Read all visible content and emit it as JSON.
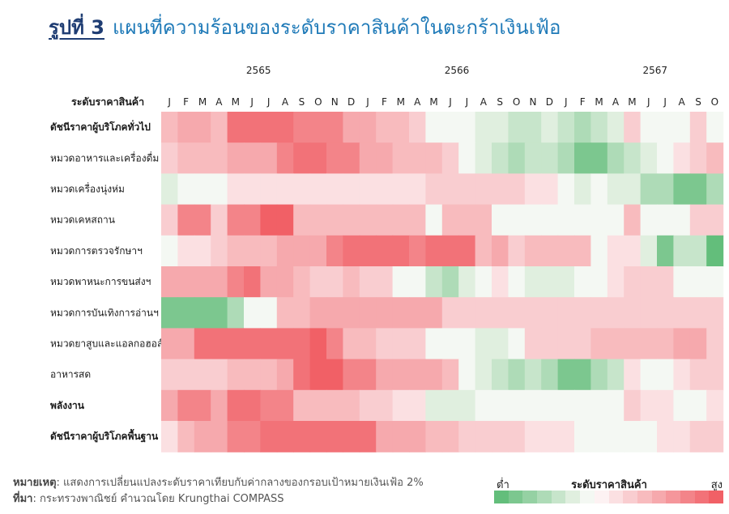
{
  "figure": {
    "label": "รูปที่ 3",
    "title": "แผนที่ความร้อนของระดับราคาสินค้าในตะกร้าเงินเฟ้อ"
  },
  "notes": {
    "note_label": "หมายเหตุ",
    "note_text": ": แสดงการเปลี่ยนแปลงระดับราคาเทียบกับค่ากลางของกรอบเป้าหมายเงินเฟ้อ 2%",
    "source_label": "ที่มา",
    "source_text": ": กระทรวงพาณิชย์ คำนวณโดย Krungthai COMPASS"
  },
  "legend": {
    "title": "ระดับราคาสินค้า",
    "low": "ต่ำ",
    "high": "สูง",
    "colors": [
      "#63be7b",
      "#7cc78f",
      "#95d1a3",
      "#aedbb7",
      "#c7e5cb",
      "#e0efdf",
      "#f4f8f3",
      "#fdf2f3",
      "#fbe0e2",
      "#f9cdd0",
      "#f8bbbe",
      "#f6a9ad",
      "#f5969b",
      "#f38489",
      "#f27278",
      "#f16066"
    ]
  },
  "chart_data": {
    "type": "heatmap",
    "title": "แผนที่ความร้อนของระดับราคาสินค้าในตะกร้าเงินเฟ้อ",
    "row_header": "ระดับราคาสินค้า",
    "years": [
      {
        "label": "2565",
        "start_index": 0
      },
      {
        "label": "2566",
        "start_index": 12
      },
      {
        "label": "2567",
        "start_index": 24
      }
    ],
    "columns": [
      "J",
      "F",
      "M",
      "A",
      "M",
      "J",
      "J",
      "A",
      "S",
      "O",
      "N",
      "D",
      "J",
      "F",
      "M",
      "A",
      "M",
      "J",
      "J",
      "A",
      "S",
      "O",
      "N",
      "D",
      "J",
      "F",
      "M",
      "A",
      "M",
      "J",
      "J",
      "A",
      "S",
      "O"
    ],
    "scale": {
      "min": -6,
      "max": 6,
      "low_label": "ต่ำ",
      "high_label": "สูง"
    },
    "rows": [
      {
        "label": "ดัชนีราคาผู้บริโภคทั่วไป",
        "bold": true,
        "values": [
          2,
          3,
          3,
          2,
          5,
          5,
          5,
          5,
          4,
          4,
          4,
          3,
          3,
          2,
          2,
          1,
          -1,
          -1,
          -1,
          -2,
          -2,
          -3,
          -3,
          -2,
          -3,
          -4,
          -3,
          -2,
          1,
          -1,
          -1,
          -1,
          1,
          -1
        ]
      },
      {
        "label": "หมวดอาหารและเครื่องดื่ม",
        "bold": false,
        "values": [
          1,
          2,
          2,
          2,
          3,
          3,
          3,
          4,
          5,
          5,
          4,
          4,
          3,
          3,
          2,
          2,
          2,
          1,
          -1,
          -2,
          -3,
          -4,
          -3,
          -3,
          -4,
          -5,
          -5,
          -4,
          -3,
          -2,
          -1,
          0,
          1,
          2
        ]
      },
      {
        "label": "หมวดเครื่องนุ่งห่ม",
        "bold": false,
        "values": [
          -2,
          -1,
          -1,
          -1,
          0,
          0,
          0,
          0,
          0,
          0,
          0,
          0,
          0,
          0,
          0,
          0,
          1,
          1,
          1,
          1,
          1,
          1,
          0,
          0,
          -1,
          -2,
          -1,
          -2,
          -2,
          -4,
          -4,
          -5,
          -5,
          -4
        ]
      },
      {
        "label": "หมวดเคหสถาน",
        "bold": false,
        "values": [
          1,
          4,
          4,
          1,
          4,
          4,
          6,
          6,
          2,
          2,
          2,
          2,
          2,
          2,
          2,
          2,
          -1,
          2,
          2,
          2,
          -1,
          -1,
          -1,
          -1,
          -1,
          -1,
          -1,
          -1,
          2,
          -1,
          -1,
          -1,
          1,
          1
        ]
      },
      {
        "label": "หมวดการตรวจรักษาฯ",
        "bold": false,
        "values": [
          -1,
          0,
          0,
          1,
          2,
          2,
          2,
          3,
          3,
          3,
          4,
          5,
          5,
          5,
          5,
          4,
          5,
          5,
          5,
          2,
          3,
          1,
          2,
          2,
          2,
          2,
          -1,
          0,
          0,
          -2,
          -5,
          -3,
          -3,
          -6
        ]
      },
      {
        "label": "หมวดพาหนะการขนส่งฯ",
        "bold": false,
        "values": [
          3,
          3,
          3,
          3,
          4,
          5,
          3,
          3,
          2,
          1,
          1,
          2,
          1,
          1,
          -1,
          -1,
          -3,
          -4,
          -2,
          -1,
          0,
          -1,
          -2,
          -2,
          -2,
          -1,
          -1,
          0,
          1,
          1,
          1,
          -1,
          -1,
          -1
        ]
      },
      {
        "label": "หมวดการบันเทิงการอ่านฯ",
        "bold": false,
        "values": [
          -5,
          -5,
          -5,
          -5,
          -4,
          -1,
          -1,
          2,
          2,
          3,
          3,
          3,
          3,
          3,
          3,
          3,
          3,
          1,
          1,
          1,
          1,
          1,
          1,
          1,
          1,
          1,
          1,
          1,
          1,
          1,
          1,
          1,
          1,
          1
        ]
      },
      {
        "label": "หมวดยาสูบและแอลกอฮอล์",
        "bold": false,
        "values": [
          3,
          3,
          5,
          5,
          5,
          5,
          5,
          5,
          5,
          6,
          4,
          2,
          2,
          1,
          1,
          1,
          -1,
          -1,
          -1,
          -2,
          -2,
          -1,
          1,
          1,
          1,
          1,
          2,
          2,
          2,
          2,
          2,
          3,
          3,
          1
        ]
      },
      {
        "label": "อาหารสด",
        "bold": false,
        "values": [
          1,
          1,
          1,
          1,
          2,
          2,
          2,
          3,
          5,
          6,
          6,
          4,
          4,
          3,
          3,
          3,
          3,
          2,
          -1,
          -2,
          -3,
          -4,
          -3,
          -4,
          -5,
          -5,
          -4,
          -3,
          0,
          -1,
          -1,
          0,
          1,
          1
        ]
      },
      {
        "label": "พลังงาน",
        "bold": true,
        "values": [
          3,
          4,
          4,
          3,
          5,
          5,
          4,
          4,
          2,
          2,
          2,
          2,
          1,
          1,
          0,
          0,
          -2,
          -2,
          -2,
          -1,
          -1,
          -1,
          -1,
          -1,
          -1,
          -1,
          -1,
          -1,
          1,
          0,
          0,
          -1,
          -1,
          0
        ]
      },
      {
        "label": "ดัชนีราคาผู้บริโภคพื้นฐาน",
        "bold": true,
        "values": [
          0,
          2,
          3,
          3,
          4,
          4,
          5,
          5,
          5,
          5,
          5,
          5,
          5,
          3,
          3,
          3,
          2,
          2,
          1,
          1,
          1,
          1,
          0,
          0,
          0,
          -1,
          -1,
          -1,
          -1,
          -1,
          0,
          0,
          1,
          1
        ]
      }
    ]
  }
}
